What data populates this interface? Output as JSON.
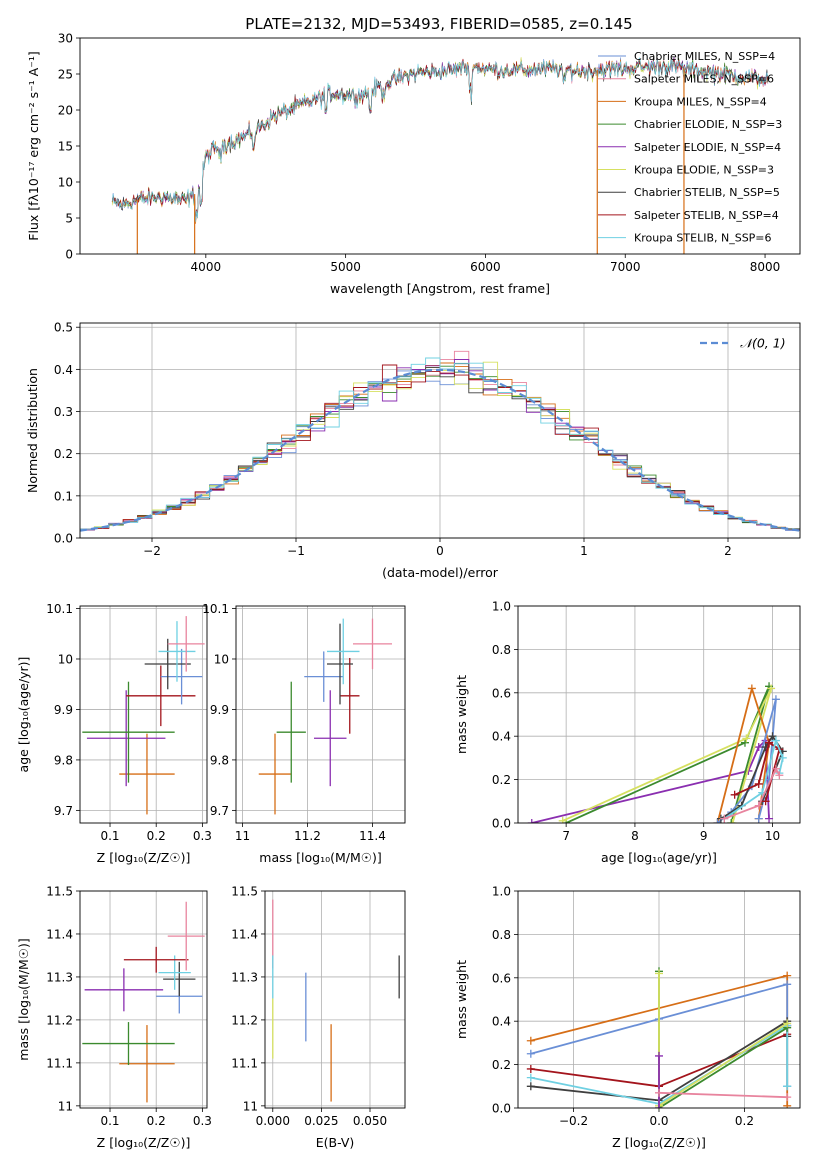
{
  "figure": {
    "title": "PLATE=2132, MJD=53493, FIBERID=0585, z=0.145"
  },
  "chart_data": [
    {
      "id": "spectrum",
      "type": "line",
      "xlabel": "wavelength [Angstrom, rest frame]",
      "ylabel": "Flux [fλ10⁻¹⁷ erg cm⁻² s⁻¹ A⁻¹]",
      "xlim": [
        3100,
        8250
      ],
      "ylim": [
        0,
        30
      ],
      "xticks": [
        4000,
        5000,
        6000,
        7000,
        8000
      ],
      "yticks": [
        0,
        5,
        10,
        15,
        20,
        25,
        30
      ],
      "grid": false,
      "legend_position": "top-right",
      "continuum": {
        "x": [
          3330,
          3400,
          3500,
          3600,
          3700,
          3800,
          3850,
          3900,
          3950,
          4000,
          4100,
          4200,
          4300,
          4400,
          4500,
          4700,
          4900,
          5100,
          5300,
          5500,
          5700,
          5900,
          6100,
          6300,
          6500,
          6700,
          6900,
          7100,
          7300,
          7500,
          7700,
          7900,
          8020
        ],
        "y": [
          7.2,
          6.8,
          7.5,
          7.8,
          8.0,
          7.6,
          7.4,
          8.0,
          8.8,
          13.5,
          15.2,
          15.6,
          16.6,
          17.8,
          19.3,
          20.8,
          22.4,
          22.0,
          23.8,
          25.2,
          25.4,
          26.0,
          25.5,
          25.6,
          25.7,
          25.4,
          25.7,
          25.9,
          26.2,
          25.5,
          25.0,
          24.5,
          24.2
        ]
      },
      "series": [
        {
          "name": "Chabrier MILES, N_SSP=4",
          "color": "#6a8fd6"
        },
        {
          "name": "Salpeter MILES, N_SSP=6",
          "color": "#e8849e"
        },
        {
          "name": "Kroupa MILES, N_SSP=4",
          "color": "#d66e17"
        },
        {
          "name": "Chabrier ELODIE, N_SSP=3",
          "color": "#3b8a2e"
        },
        {
          "name": "Salpeter ELODIE, N_SSP=4",
          "color": "#8a2eb0"
        },
        {
          "name": "Kroupa ELODIE, N_SSP=3",
          "color": "#d6e060"
        },
        {
          "name": "Chabrier STELIB, N_SSP=5",
          "color": "#3f3f3f"
        },
        {
          "name": "Salpeter STELIB, N_SSP=4",
          "color": "#a3141c"
        },
        {
          "name": "Kroupa STELIB, N_SSP=6",
          "color": "#6fd0e2"
        }
      ],
      "drops": [
        {
          "series": 2,
          "x": 3510
        },
        {
          "series": 2,
          "x": 3920
        },
        {
          "series": 2,
          "x": 6800
        },
        {
          "series": 2,
          "x": 7420
        }
      ]
    },
    {
      "id": "residuals",
      "type": "line",
      "xlabel": "(data-model)/error",
      "ylabel": "Normed distribution",
      "xlim": [
        -2.5,
        2.5
      ],
      "ylim": [
        0,
        0.51
      ],
      "xticks": [
        -2,
        -1,
        0,
        1,
        2
      ],
      "xtick_labels": [
        "−2",
        "−1",
        "0",
        "1",
        "2"
      ],
      "yticks": [
        0,
        0.1,
        0.2,
        0.3,
        0.4,
        0.5
      ],
      "grid": true,
      "legend_position": "top-right",
      "reference": {
        "name": "𝒩(0, 1)",
        "color": "#5b8cd4",
        "mean": 0,
        "sigma": 1
      },
      "bin_width": 0.1
    },
    {
      "id": "age-vs-Z",
      "type": "scatter",
      "xlabel": "Z [log₁₀(Z/Z☉)]",
      "ylabel": "age  [log₁₀(age/yr)]",
      "xlim": [
        0.035,
        0.31
      ],
      "ylim": [
        9.675,
        10.105
      ],
      "xticks": [
        0.1,
        0.2,
        0.3
      ],
      "yticks": [
        9.7,
        9.8,
        9.9,
        10.0,
        10.1
      ],
      "grid": true,
      "points": [
        {
          "color": "#d66e17",
          "x": 0.18,
          "xerr": 0.06,
          "y": 9.772,
          "yerr": 0.08
        },
        {
          "color": "#8a2eb0",
          "x": 0.135,
          "xerr": 0.085,
          "y": 9.843,
          "yerr": 0.095
        },
        {
          "color": "#3b8a2e",
          "x": 0.14,
          "xerr": 0.1,
          "y": 9.855,
          "yerr": 0.1
        },
        {
          "color": "#a3141c",
          "x": 0.21,
          "xerr": 0.075,
          "y": 9.927,
          "yerr": 0.06
        },
        {
          "color": "#6a8fd6",
          "x": 0.255,
          "xerr": 0.045,
          "y": 9.965,
          "yerr": 0.055
        },
        {
          "color": "#3f3f3f",
          "x": 0.225,
          "xerr": 0.05,
          "y": 9.99,
          "yerr": 0.05
        },
        {
          "color": "#6fd0e2",
          "x": 0.245,
          "xerr": 0.04,
          "y": 10.015,
          "yerr": 0.06
        },
        {
          "color": "#e8849e",
          "x": 0.265,
          "xerr": 0.04,
          "y": 10.03,
          "yerr": 0.055
        }
      ]
    },
    {
      "id": "age-vs-mass",
      "type": "scatter",
      "xlabel": "mass [log₁₀(M/M☉)]",
      "ylabel": "",
      "xlim": [
        10.98,
        11.5
      ],
      "ylim": [
        9.675,
        10.105
      ],
      "xticks": [
        11.0,
        11.2,
        11.4
      ],
      "yticks": [
        9.7,
        9.8,
        9.9,
        10.0,
        10.1
      ],
      "grid": true,
      "points": [
        {
          "color": "#d66e17",
          "x": 11.1,
          "xerr": 0.05,
          "y": 9.772,
          "yerr": 0.08
        },
        {
          "color": "#8a2eb0",
          "x": 11.27,
          "xerr": 0.05,
          "y": 9.843,
          "yerr": 0.095
        },
        {
          "color": "#3b8a2e",
          "x": 11.15,
          "xerr": 0.045,
          "y": 9.855,
          "yerr": 0.1
        },
        {
          "color": "#a3141c",
          "x": 11.33,
          "xerr": 0.03,
          "y": 9.927,
          "yerr": 0.075
        },
        {
          "color": "#6a8fd6",
          "x": 11.25,
          "xerr": 0.06,
          "y": 9.965,
          "yerr": 0.05
        },
        {
          "color": "#3f3f3f",
          "x": 11.3,
          "xerr": 0.04,
          "y": 9.99,
          "yerr": 0.08
        },
        {
          "color": "#6fd0e2",
          "x": 11.31,
          "xerr": 0.05,
          "y": 10.015,
          "yerr": 0.065
        },
        {
          "color": "#e8849e",
          "x": 11.4,
          "xerr": 0.06,
          "y": 10.03,
          "yerr": 0.05
        }
      ]
    },
    {
      "id": "weight-vs-age",
      "type": "line",
      "xlabel": "age  [log₁₀(age/yr)]",
      "ylabel": "mass weight",
      "xlim": [
        6.3,
        10.4
      ],
      "ylim": [
        0,
        1
      ],
      "xticks": [
        7,
        8,
        9,
        10
      ],
      "yticks": [
        0.0,
        0.2,
        0.4,
        0.6,
        0.8,
        1.0
      ],
      "grid": true,
      "series": [
        {
          "color": "#8a2eb0",
          "x": [
            6.5,
            9.65,
            9.8,
            9.9,
            9.95
          ],
          "y": [
            0.0,
            0.24,
            0.35,
            0.38,
            0.02
          ]
        },
        {
          "color": "#3b8a2e",
          "x": [
            7.0,
            9.6,
            9.95,
            9.4
          ],
          "y": [
            0.0,
            0.37,
            0.63,
            0.0
          ]
        },
        {
          "color": "#d6e060",
          "x": [
            6.95,
            9.62,
            9.98,
            9.42
          ],
          "y": [
            0.01,
            0.39,
            0.62,
            0.0
          ]
        },
        {
          "color": "#d66e17",
          "x": [
            9.2,
            9.7,
            9.95,
            9.8
          ],
          "y": [
            0.0,
            0.62,
            0.37,
            0.02
          ]
        },
        {
          "color": "#6a8fd6",
          "x": [
            9.2,
            9.4,
            9.7,
            10.05,
            9.95,
            9.8
          ],
          "y": [
            0.0,
            0.05,
            0.17,
            0.57,
            0.2,
            0.02
          ]
        },
        {
          "color": "#3f3f3f",
          "x": [
            9.25,
            9.55,
            9.9,
            10.0,
            10.15,
            9.85
          ],
          "y": [
            0.02,
            0.08,
            0.35,
            0.4,
            0.33,
            0.1
          ]
        },
        {
          "color": "#a3141c",
          "x": [
            9.45,
            9.8,
            9.95,
            10.1,
            9.9
          ],
          "y": [
            0.13,
            0.18,
            0.37,
            0.34,
            0.1
          ]
        },
        {
          "color": "#6fd0e2",
          "x": [
            9.3,
            9.85,
            10.05,
            10.15,
            10.1
          ],
          "y": [
            0.02,
            0.14,
            0.38,
            0.3,
            0.23
          ]
        },
        {
          "color": "#e8849e",
          "x": [
            9.3,
            9.8,
            10.05,
            10.1
          ],
          "y": [
            0.02,
            0.08,
            0.25,
            0.22
          ]
        }
      ]
    },
    {
      "id": "mass-vs-Z",
      "type": "scatter",
      "xlabel": "Z [log₁₀(Z/Z☉)]",
      "ylabel": "mass [log₁₀(M/M☉)]",
      "xlim": [
        0.035,
        0.31
      ],
      "ylim": [
        10.995,
        11.5
      ],
      "xticks": [
        0.1,
        0.2,
        0.3
      ],
      "yticks": [
        11.0,
        11.1,
        11.2,
        11.3,
        11.4,
        11.5
      ],
      "grid": true,
      "points": [
        {
          "color": "#d66e17",
          "x": 0.18,
          "xerr": 0.06,
          "y": 11.098,
          "yerr": 0.09
        },
        {
          "color": "#3b8a2e",
          "x": 0.14,
          "xerr": 0.1,
          "y": 11.145,
          "yerr": 0.05
        },
        {
          "color": "#6a8fd6",
          "x": 0.25,
          "xerr": 0.05,
          "y": 11.255,
          "yerr": 0.04
        },
        {
          "color": "#8a2eb0",
          "x": 0.13,
          "xerr": 0.085,
          "y": 11.27,
          "yerr": 0.05
        },
        {
          "color": "#3f3f3f",
          "x": 0.25,
          "xerr": 0.035,
          "y": 11.295,
          "yerr": 0.04
        },
        {
          "color": "#6fd0e2",
          "x": 0.24,
          "xerr": 0.035,
          "y": 11.31,
          "yerr": 0.04
        },
        {
          "color": "#a3141c",
          "x": 0.2,
          "xerr": 0.07,
          "y": 11.34,
          "yerr": 0.03
        },
        {
          "color": "#e8849e",
          "x": 0.265,
          "xerr": 0.04,
          "y": 11.395,
          "yerr": 0.08
        }
      ]
    },
    {
      "id": "mass-vs-ebv",
      "type": "scatter",
      "xlabel": "E(B-V)",
      "ylabel": "",
      "xlim": [
        -0.004,
        0.068
      ],
      "ylim": [
        10.995,
        11.5
      ],
      "xticks": [
        0.0,
        0.025,
        0.05
      ],
      "xtick_labels": [
        "0.000",
        "0.025",
        "0.050"
      ],
      "yticks": [
        11.0,
        11.1,
        11.2,
        11.3,
        11.4,
        11.5
      ],
      "grid": true,
      "points": [
        {
          "color": "#d6e060",
          "x": 0.0,
          "y": 11.18,
          "yerr": 0.07
        },
        {
          "color": "#e8849e",
          "x": 0.0,
          "y": 11.4,
          "yerr": 0.08
        },
        {
          "color": "#6fd0e2",
          "x": 0.0,
          "y": 11.3,
          "yerr": 0.05
        },
        {
          "color": "#6a8fd6",
          "x": 0.017,
          "y": 11.23,
          "yerr": 0.08
        },
        {
          "color": "#d66e17",
          "x": 0.03,
          "y": 11.1,
          "yerr": 0.09
        },
        {
          "color": "#3f3f3f",
          "x": 0.065,
          "y": 11.3,
          "yerr": 0.05
        }
      ]
    },
    {
      "id": "weight-vs-Z",
      "type": "line",
      "xlabel": "Z [log₁₀(Z/Z☉)]",
      "ylabel": "mass weight",
      "xlim": [
        -0.33,
        0.33
      ],
      "ylim": [
        0,
        1
      ],
      "xticks": [
        -0.2,
        0.0,
        0.2
      ],
      "xtick_labels": [
        "−0.2",
        "0.0",
        "0.2"
      ],
      "yticks": [
        0.0,
        0.2,
        0.4,
        0.6,
        0.8,
        1.0
      ],
      "grid": true,
      "series": [
        {
          "color": "#d66e17",
          "x": [
            -0.3,
            0.3,
            0.3
          ],
          "y": [
            0.31,
            0.61,
            0.01
          ]
        },
        {
          "color": "#6a8fd6",
          "x": [
            -0.3,
            0.0,
            0.3,
            0.3
          ],
          "y": [
            0.25,
            0.41,
            0.57,
            0.1
          ]
        },
        {
          "color": "#a3141c",
          "x": [
            -0.3,
            0.0,
            0.3,
            0.3
          ],
          "y": [
            0.18,
            0.1,
            0.34,
            0.38
          ]
        },
        {
          "color": "#3f3f3f",
          "x": [
            -0.3,
            0.0,
            0.3,
            0.3
          ],
          "y": [
            0.1,
            0.035,
            0.4,
            0.33
          ]
        },
        {
          "color": "#6fd0e2",
          "x": [
            -0.3,
            0.0,
            0.3,
            0.3
          ],
          "y": [
            0.14,
            0.02,
            0.38,
            0.1
          ]
        },
        {
          "color": "#3b8a2e",
          "x": [
            0.0,
            0.0,
            0.3
          ],
          "y": [
            0.63,
            0.0,
            0.37
          ]
        },
        {
          "color": "#d6e060",
          "x": [
            0.0,
            0.0,
            0.3
          ],
          "y": [
            0.62,
            0.01,
            0.39
          ]
        },
        {
          "color": "#8a2eb0",
          "x": [
            0.0,
            0.0
          ],
          "y": [
            0.0,
            0.24
          ]
        },
        {
          "color": "#e8849e",
          "x": [
            0.0,
            0.3
          ],
          "y": [
            0.07,
            0.05
          ]
        }
      ]
    }
  ]
}
